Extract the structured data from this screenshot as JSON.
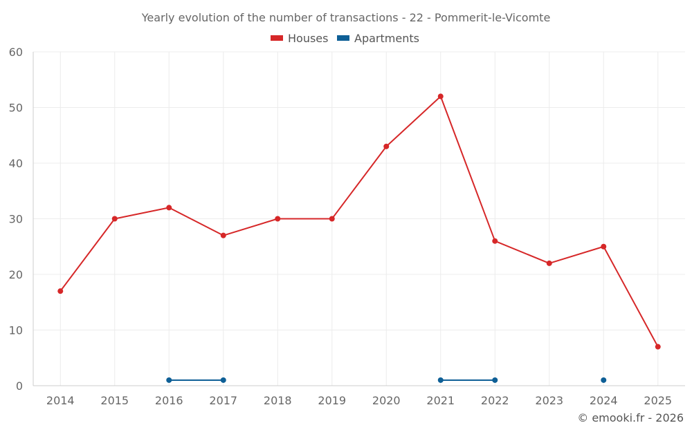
{
  "chart_data": {
    "type": "line",
    "title": "Yearly evolution of the number of transactions - 22 - Pommerit-le-Vicomte",
    "categories": [
      "2014",
      "2015",
      "2016",
      "2017",
      "2018",
      "2019",
      "2020",
      "2021",
      "2022",
      "2023",
      "2024",
      "2025"
    ],
    "series": [
      {
        "name": "Houses",
        "color": "#d62728",
        "values": [
          17,
          30,
          32,
          27,
          30,
          30,
          43,
          52,
          26,
          22,
          25,
          7
        ]
      },
      {
        "name": "Apartments",
        "color": "#0e5f96",
        "values": [
          null,
          null,
          1,
          1,
          null,
          null,
          null,
          1,
          1,
          null,
          1,
          null
        ]
      }
    ],
    "ylim": [
      0,
      60
    ],
    "yticks": [
      "0",
      "10",
      "20",
      "30",
      "40",
      "50",
      "60"
    ],
    "xlabel": "",
    "ylabel": "",
    "grid": true,
    "legend_position": "top-center"
  },
  "credit": "© emooki.fr - 2026"
}
